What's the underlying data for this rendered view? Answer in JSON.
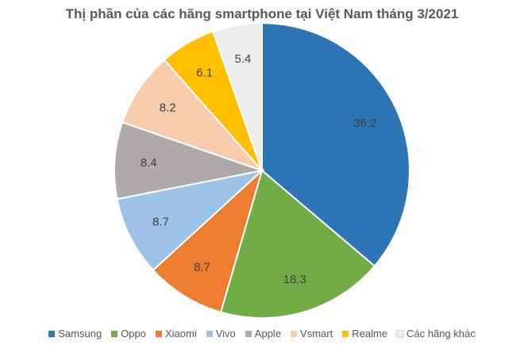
{
  "chart_data": {
    "type": "pie",
    "title": "Thị phần của các hãng smartphone tại Việt Nam tháng 3/2021",
    "legend_position": "bottom",
    "slices": [
      {
        "label": "Samsung",
        "value": 36.2,
        "display": "36.2",
        "color": "#2e75b6"
      },
      {
        "label": "Oppo",
        "value": 18.3,
        "display": "18.3",
        "color": "#70ad47"
      },
      {
        "label": "Xiaomi",
        "value": 8.7,
        "display": "8.7",
        "color": "#ed7d31"
      },
      {
        "label": "Vivo",
        "value": 8.7,
        "display": "8.7",
        "color": "#9dc3e6"
      },
      {
        "label": "Apple",
        "value": 8.4,
        "display": "8.4",
        "color": "#aeaaaa"
      },
      {
        "label": "Vsmart",
        "value": 8.2,
        "display": "8.2",
        "color": "#f8cbad"
      },
      {
        "label": "Realme",
        "value": 6.1,
        "display": "6.1",
        "color": "#ffc000"
      },
      {
        "label": "Các hãng khác",
        "value": 5.4,
        "display": "5.4",
        "color": "#ededed"
      }
    ]
  }
}
